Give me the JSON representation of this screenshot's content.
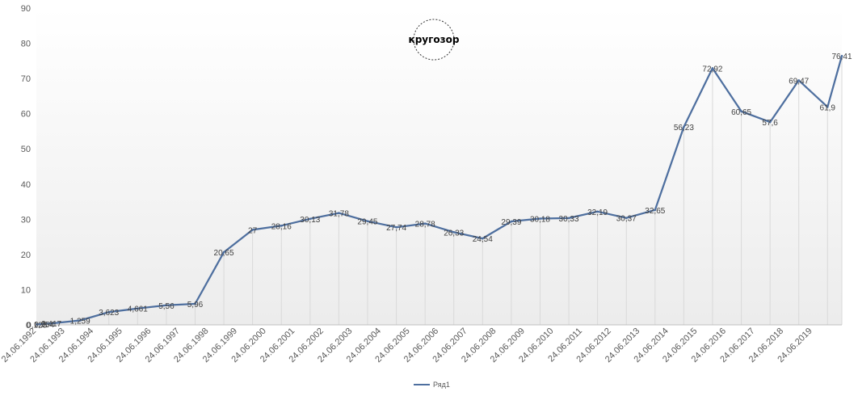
{
  "chart_data": {
    "type": "line",
    "title": "",
    "xlabel": "",
    "ylabel": "",
    "ylim": [
      0,
      90
    ],
    "yticks": [
      0,
      10,
      20,
      30,
      40,
      50,
      60,
      70,
      80,
      90
    ],
    "grid": "vertical drop lines at each point",
    "legend": {
      "placement": "bottom-center",
      "entries": [
        "Ряд1"
      ]
    },
    "categories": [
      "24.06.1992",
      "24.06.1993",
      "24.06.1994",
      "24.06.1995",
      "24.06.1996",
      "24.06.1997",
      "24.06.1998",
      "24.06.1999",
      "24.06.2000",
      "24.06.2001",
      "24.06.2002",
      "24.06.2003",
      "24.06.2004",
      "24.06.2005",
      "24.06.2006",
      "24.06.2007",
      "24.06.2008",
      "24.06.2009",
      "24.06.2010",
      "24.06.2011",
      "24.06.2012",
      "24.06.2013",
      "24.06.2014",
      "24.06.2015",
      "24.06.2016",
      "24.06.2017",
      "24.06.2018",
      "24.06.2019"
    ],
    "series": [
      {
        "name": "Ряд1",
        "color": "#4e6f9f",
        "points": [
          {
            "x": "1992-07-01",
            "y": 0.125,
            "label": "0,125"
          },
          {
            "x": "1992-10-01",
            "y": 0.254,
            "label": "0,254"
          },
          {
            "x": "1993-01-01",
            "y": 0.417,
            "label": "0,417"
          },
          {
            "x": "1994-01-01",
            "y": 1.259,
            "label": "1,259"
          },
          {
            "x": "1995-01-01",
            "y": 3.623,
            "label": "3,623"
          },
          {
            "x": "1996-01-01",
            "y": 4.661,
            "label": "4,661"
          },
          {
            "x": "1997-01-01",
            "y": 5.56,
            "label": "5,56"
          },
          {
            "x": "1998-01-01",
            "y": 5.96,
            "label": "5,96"
          },
          {
            "x": "1999-01-01",
            "y": 20.65,
            "label": "20,65"
          },
          {
            "x": "2000-01-01",
            "y": 27,
            "label": "27"
          },
          {
            "x": "2001-01-01",
            "y": 28.16,
            "label": "28,16"
          },
          {
            "x": "2002-01-01",
            "y": 30.13,
            "label": "30,13"
          },
          {
            "x": "2003-01-01",
            "y": 31.78,
            "label": "31,78"
          },
          {
            "x": "2004-01-01",
            "y": 29.45,
            "label": "29,45"
          },
          {
            "x": "2005-01-01",
            "y": 27.74,
            "label": "27,74"
          },
          {
            "x": "2006-01-01",
            "y": 28.78,
            "label": "28,78"
          },
          {
            "x": "2007-01-01",
            "y": 26.33,
            "label": "26,33"
          },
          {
            "x": "2008-01-01",
            "y": 24.54,
            "label": "24,54"
          },
          {
            "x": "2009-01-01",
            "y": 29.39,
            "label": "29,39"
          },
          {
            "x": "2010-01-01",
            "y": 30.18,
            "label": "30,18"
          },
          {
            "x": "2011-01-01",
            "y": 30.33,
            "label": "30,33"
          },
          {
            "x": "2012-01-01",
            "y": 32.19,
            "label": "32,19"
          },
          {
            "x": "2013-01-01",
            "y": 30.37,
            "label": "30,37"
          },
          {
            "x": "2014-01-01",
            "y": 32.65,
            "label": "32,65"
          },
          {
            "x": "2015-01-01",
            "y": 56.23,
            "label": "56,23"
          },
          {
            "x": "2016-01-01",
            "y": 72.92,
            "label": "72,92"
          },
          {
            "x": "2017-01-01",
            "y": 60.65,
            "label": "60,65"
          },
          {
            "x": "2018-01-01",
            "y": 57.6,
            "label": "57,6"
          },
          {
            "x": "2019-01-01",
            "y": 69.47,
            "label": "69,47"
          },
          {
            "x": "2020-01-01",
            "y": 61.9,
            "label": "61,9"
          },
          {
            "x": "2020-07-01",
            "y": 76.41,
            "label": "76,41"
          }
        ]
      }
    ]
  },
  "logo": {
    "text": "кругозор"
  }
}
